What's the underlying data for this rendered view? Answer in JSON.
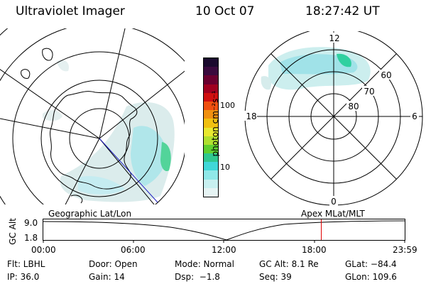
{
  "header": {
    "instrument": "Ultraviolet Imager",
    "date": "10 Oct 07",
    "time": "18:27:42 UT"
  },
  "geo_map": {
    "label": "Geographic Lat/Lon"
  },
  "colorbar": {
    "unit_label": "photon cm⁻²s⁻¹",
    "ticks": [
      "100",
      "10"
    ],
    "colors": [
      "#1a0a2e",
      "#3a0a3e",
      "#6a0030",
      "#a00020",
      "#d01010",
      "#f05010",
      "#f09010",
      "#f0c010",
      "#e8e830",
      "#b0e030",
      "#60d030",
      "#30c890",
      "#40d8d8",
      "#90e8e8",
      "#c8f0f0",
      "#e6f4f4"
    ]
  },
  "polar": {
    "mlt_labels": {
      "top": "12",
      "left": "18",
      "right": "6",
      "bottom": "0"
    },
    "lat_labels": [
      "60",
      "70",
      "80"
    ],
    "label": "Apex MLat/MLT"
  },
  "altitude_strip": {
    "ylabel": "GC Alt",
    "yticks": [
      "9.0",
      "1.8"
    ],
    "xticks": [
      "00:00",
      "06:00",
      "12:00",
      "18:00",
      "23:59"
    ],
    "current_time_hours": 18.46,
    "marker_color": "#e00000"
  },
  "info": {
    "filter": "Flt: LBHL",
    "door": "Door: Open",
    "mode": "Mode: Normal",
    "gc_alt": "GC Alt: 8.1 Re",
    "glat": "GLat: −84.4",
    "ip": "IP: 36.0",
    "gain": "Gain: 14",
    "dsp": "Dsp:  −1.8",
    "seq": "Seq: 39",
    "glon": "GLon: 109.6"
  }
}
